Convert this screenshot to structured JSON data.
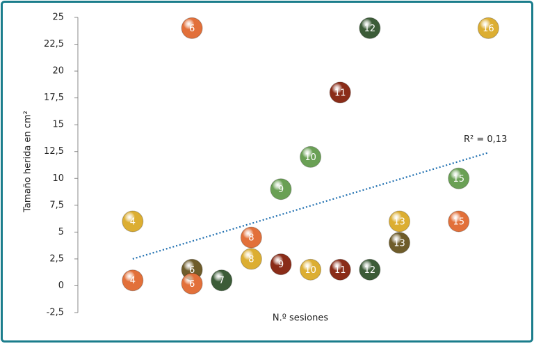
{
  "chart_data": {
    "type": "scatter",
    "y_label": "Tamaño herida en cm²",
    "x_label": "N.º sesiones",
    "annotation": "R² = 0,13",
    "x": [
      4,
      4,
      6,
      6,
      6,
      7,
      8,
      8,
      9,
      9,
      10,
      10,
      11,
      11,
      12,
      12,
      13,
      13,
      15,
      15,
      16
    ],
    "y": [
      6,
      0.5,
      24,
      1.5,
      0.2,
      0.5,
      4.5,
      2.5,
      9,
      2,
      12,
      1.5,
      18,
      1.5,
      24,
      1.5,
      6,
      4,
      10,
      6,
      24
    ],
    "colors": [
      "#dcae32",
      "#e2703a",
      "#e2703a",
      "#6e5c2a",
      "#e2703a",
      "#3c5c38",
      "#e2703a",
      "#dcae32",
      "#6aa055",
      "#8a2c18",
      "#6aa055",
      "#dcae32",
      "#8a2c18",
      "#8a2c18",
      "#3c5c38",
      "#3c5c38",
      "#dcae32",
      "#6e5c2a",
      "#6aa055",
      "#e2703a",
      "#dcae32"
    ],
    "trendline": {
      "x": [
        4,
        16
      ],
      "y": [
        2.5,
        12.4
      ],
      "color": "#1f6fb0"
    },
    "xlim": [
      2.15,
      17
    ],
    "ylim": [
      -2.5,
      25
    ],
    "yticks": [
      {
        "value": -2.5,
        "label": "-2,5"
      },
      0,
      {
        "value": 2.5,
        "label": "2,5"
      },
      5,
      {
        "value": 7.5,
        "label": "7,5"
      },
      10,
      {
        "value": 12.5,
        "label": "12,5"
      },
      15,
      {
        "value": 17.5,
        "label": "17,5"
      },
      20,
      {
        "value": 22.5,
        "label": "22,5"
      },
      25
    ]
  }
}
